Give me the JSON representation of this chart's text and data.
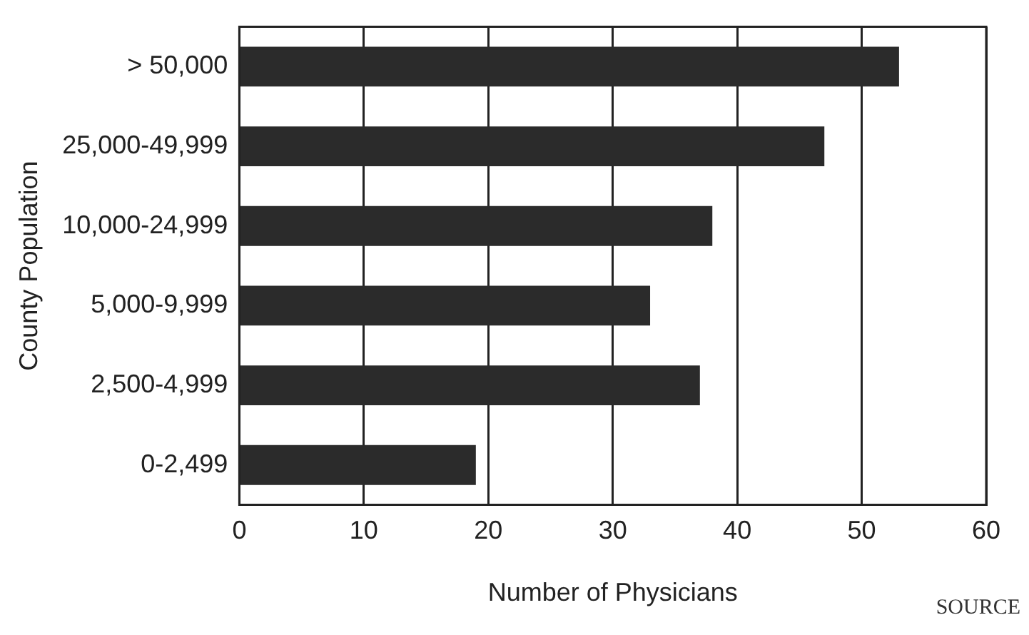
{
  "chart_data": {
    "type": "bar",
    "orientation": "horizontal",
    "xlabel": "Number of Physicians",
    "ylabel": "County Population",
    "categories": [
      "> 50,000",
      "25,000-49,999",
      "10,000-24,999",
      "5,000-9,999",
      "2,500-4,999",
      "0-2,499"
    ],
    "values": [
      53,
      47,
      38,
      33,
      37,
      19
    ],
    "color": "#2b2b2b",
    "xlim": [
      0,
      60
    ],
    "xticks": [
      0,
      10,
      20,
      30,
      40,
      50,
      60
    ],
    "grid": "x",
    "legend": false,
    "annotations": [
      "SOURCE"
    ]
  }
}
